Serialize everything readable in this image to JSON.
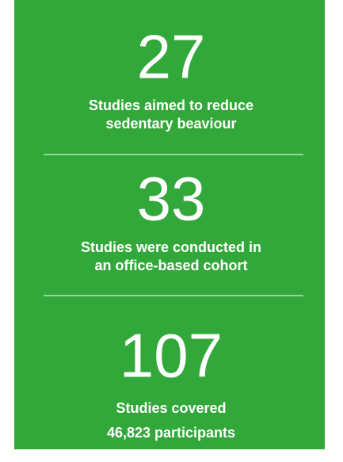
{
  "stats": [
    {
      "number": "27",
      "lines": [
        "Studies aimed to reduce",
        "sedentary beaviour"
      ]
    },
    {
      "number": "33",
      "lines": [
        "Studies were conducted in",
        "an office-based cohort"
      ]
    },
    {
      "number": "107",
      "lines": [
        "Studies covered",
        "46,823 participants"
      ]
    }
  ]
}
